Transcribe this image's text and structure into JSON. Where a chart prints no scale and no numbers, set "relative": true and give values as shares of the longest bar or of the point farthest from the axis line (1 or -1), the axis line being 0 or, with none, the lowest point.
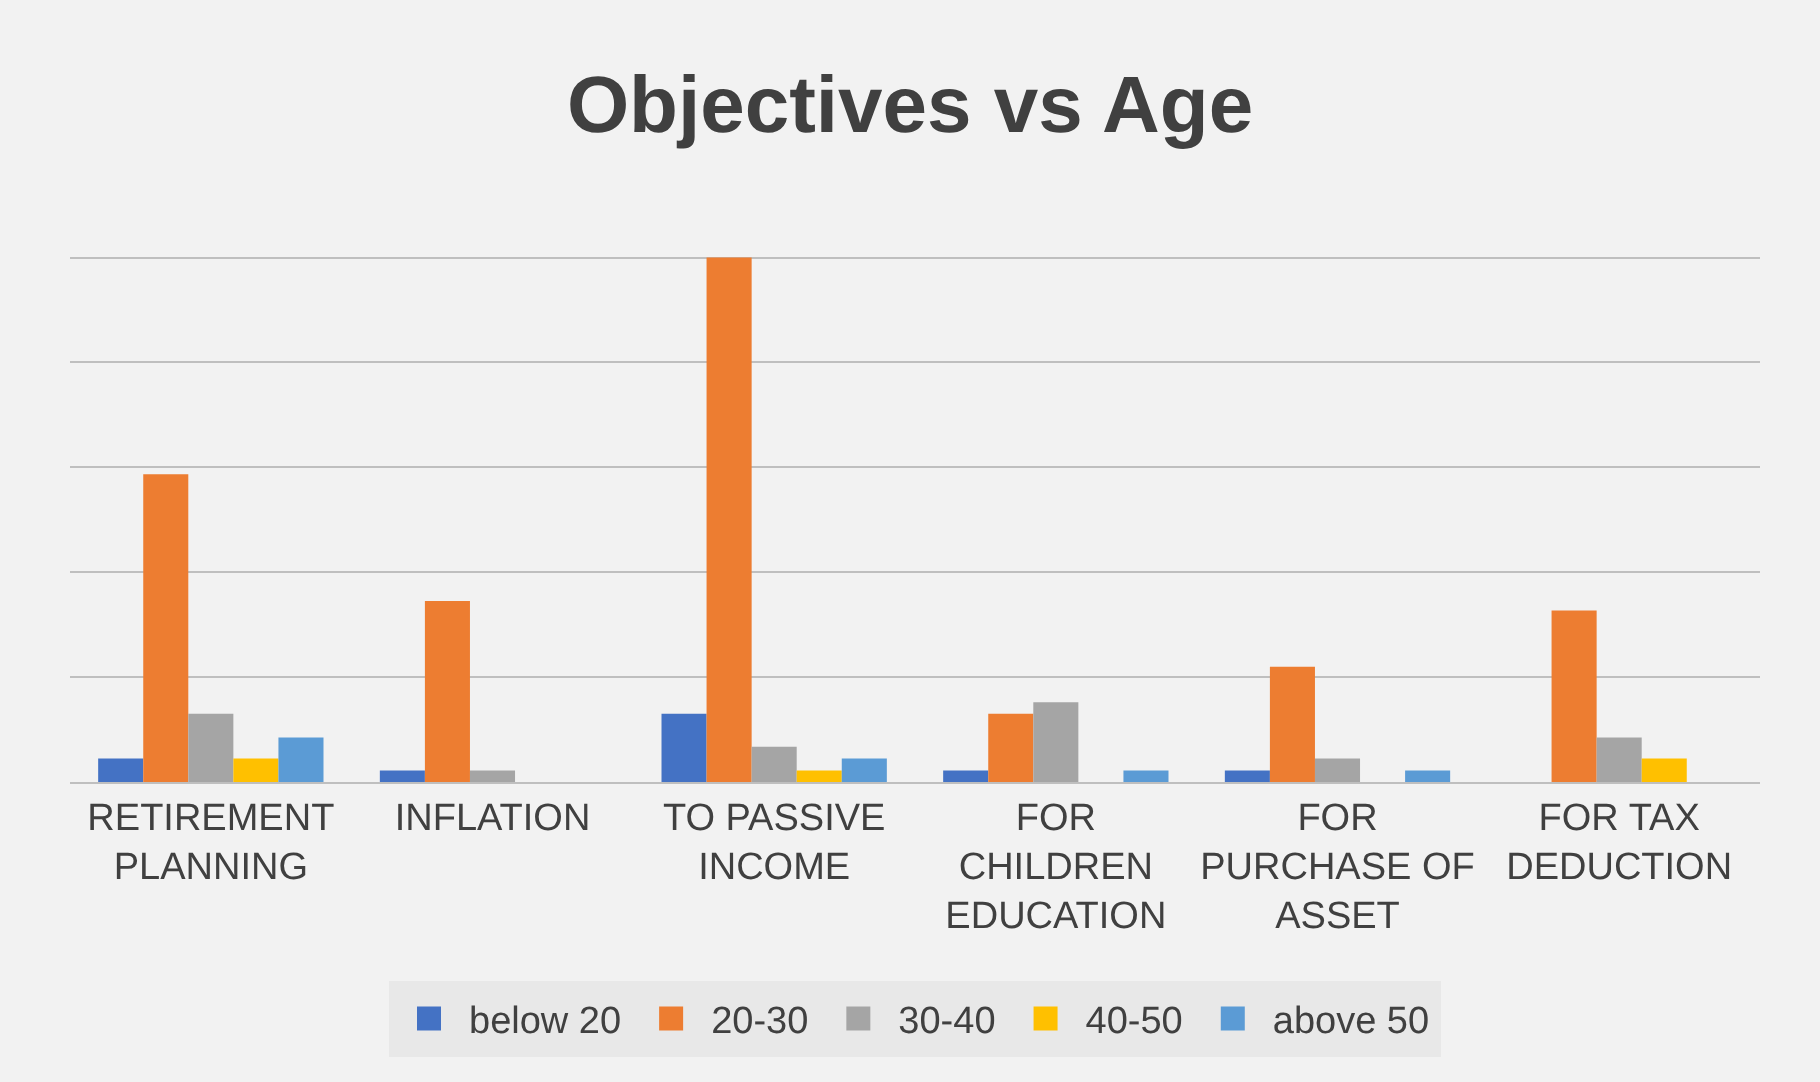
{
  "chart_data": {
    "type": "bar",
    "title": "Objectives vs Age",
    "relative": true,
    "grid": "y",
    "legend": "bottom",
    "categories": [
      "RETIREMENT PLANNING",
      "INFLATION",
      "TO PASSIVE INCOME",
      "FOR CHILDREN EDUCATION",
      "FOR PURCHASE OF ASSET",
      "FOR TAX DEDUCTION"
    ],
    "series": [
      {
        "name": "below 20",
        "color": "#4472c4",
        "values": [
          0.045,
          0.022,
          0.13,
          0.022,
          0.022,
          0
        ]
      },
      {
        "name": "20-30",
        "color": "#ed7d31",
        "values": [
          0.587,
          0.345,
          1,
          0.13,
          0.22,
          0.327
        ]
      },
      {
        "name": "30-40",
        "color": "#a5a5a5",
        "values": [
          0.13,
          0.022,
          0.067,
          0.152,
          0.045,
          0.085
        ]
      },
      {
        "name": "40-50",
        "color": "#ffc000",
        "values": [
          0.045,
          0,
          0.022,
          0,
          0,
          0.045
        ]
      },
      {
        "name": "above 50",
        "color": "#5b9bd5",
        "values": [
          0.085,
          0,
          0.045,
          0.022,
          0.022,
          0
        ]
      }
    ]
  }
}
